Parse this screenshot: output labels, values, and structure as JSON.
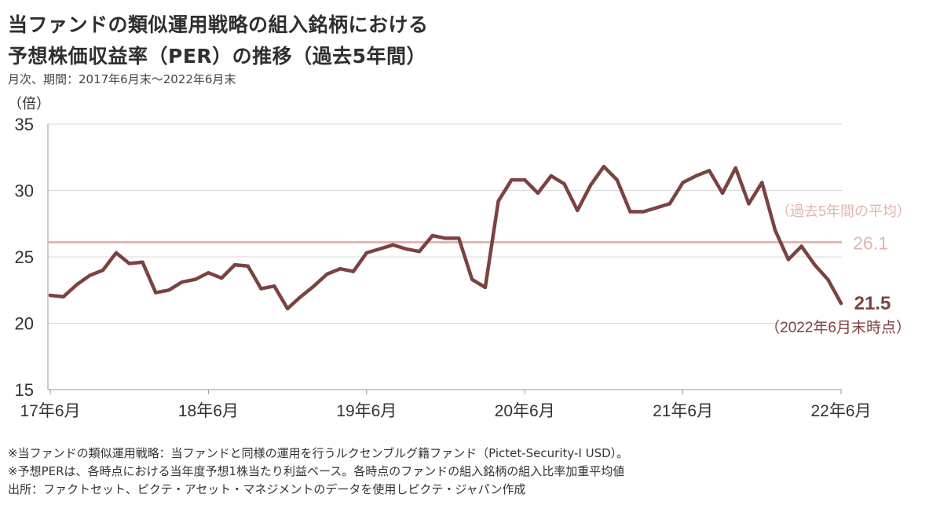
{
  "title_line1": "当ファンドの類似運用戦略の組入銘柄における",
  "title_line2": "予想株価収益率（PER）の推移（過去5年間）",
  "subtitle": "月次、期間：2017年6月末～2022年6月末",
  "notes": [
    "※当ファンドの類似運用戦略：当ファンドと同様の運用を行うルクセンブルグ籍ファンド（Pictet-Security-I USD）。",
    "※予想PERは、各時点における当年度予想1株当たり利益ベース。各時点のファンドの組入銘柄の組入比率加重平均値",
    "出所：ファクトセット、ピクテ・アセット・マネジメントのデータを使用しピクテ・ジャパン作成"
  ],
  "chart_data": {
    "type": "line",
    "ylabel": "（倍）",
    "ylim": [
      15,
      35
    ],
    "yticks": [
      15,
      20,
      25,
      30,
      35
    ],
    "x_start": "2017-06",
    "x_end": "2022-06",
    "xtick_labels": [
      "17年6月",
      "18年6月",
      "19年6月",
      "20年6月",
      "21年6月",
      "22年6月"
    ],
    "grid": "horizontal",
    "colors": {
      "line": "#7b4340",
      "average": "#e3b4ad",
      "grid": "#d9d9d9",
      "axis": "#999999"
    },
    "series": [
      {
        "values": [
          22.1,
          22.0,
          22.9,
          23.6,
          24.0,
          25.3,
          24.5,
          24.6,
          22.3,
          22.5,
          23.1,
          23.3,
          23.8,
          23.4,
          24.4,
          24.3,
          22.6,
          22.8,
          21.1,
          22.0,
          22.8,
          23.7,
          24.1,
          23.9,
          25.3,
          25.6,
          25.9,
          25.6,
          25.4,
          26.6,
          26.4,
          26.4,
          23.3,
          22.7,
          29.2,
          30.8,
          30.8,
          29.8,
          31.1,
          30.5,
          28.5,
          30.4,
          31.8,
          30.8,
          28.4,
          28.4,
          28.7,
          29.0,
          30.6,
          31.1,
          31.5,
          29.8,
          31.7,
          29.0,
          30.6,
          27.0,
          24.8,
          25.8,
          24.4,
          23.3,
          21.5
        ]
      }
    ],
    "average": {
      "value": 26.1,
      "value_label": "26.1",
      "label": "（過去5年間の平均）"
    },
    "last_point": {
      "value_label": "21.5",
      "date_label": "（2022年6月末時点）"
    }
  }
}
